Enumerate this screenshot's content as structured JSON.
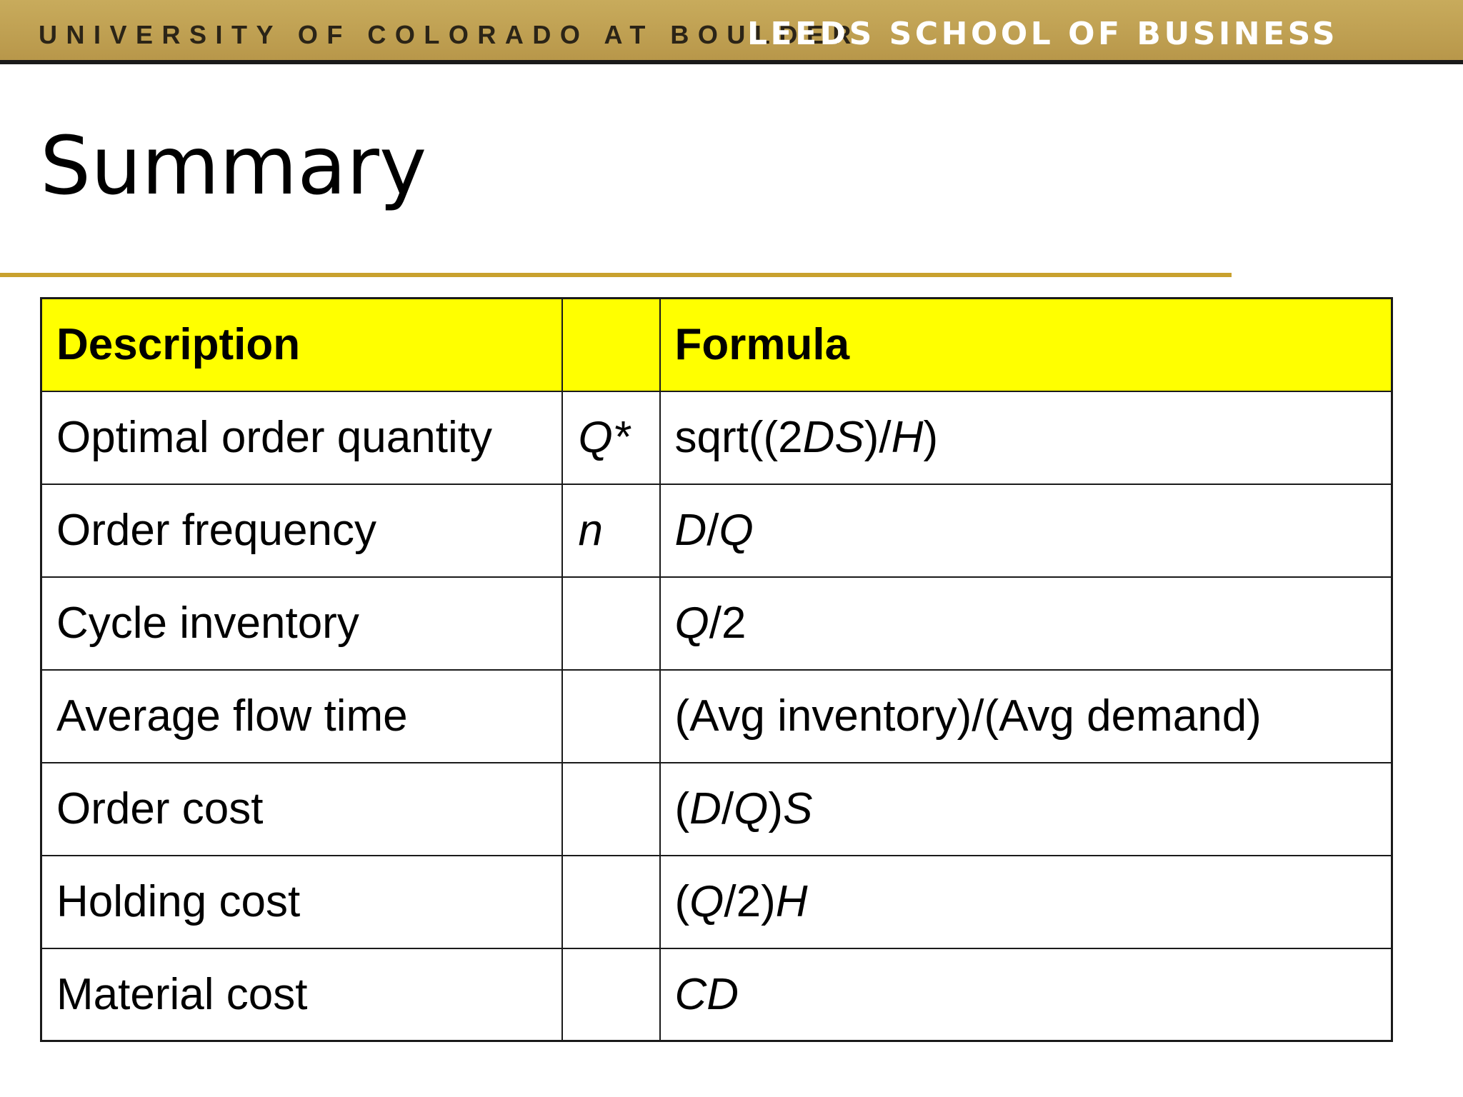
{
  "header": {
    "university": "UNIVERSITY OF COLORADO AT BOULDER",
    "school": "LEEDS SCHOOL OF BUSINESS",
    "colors": {
      "banner": "#c8ab5c",
      "banner_rule": "#1a1a1a",
      "accent_rule": "#c9a12e",
      "table_header": "#ffff00"
    }
  },
  "slide": {
    "title": "Summary"
  },
  "table": {
    "headers": {
      "description": "Description",
      "symbol": "",
      "formula": "Formula"
    },
    "rows": [
      {
        "description": "Optimal order quantity",
        "symbol": "Q*",
        "formula": [
          {
            "t": "sqrt((2",
            "i": false
          },
          {
            "t": "DS",
            "i": true
          },
          {
            "t": ")/",
            "i": false
          },
          {
            "t": "H",
            "i": true
          },
          {
            "t": ")",
            "i": false
          }
        ]
      },
      {
        "description": "Order frequency",
        "symbol": "n",
        "formula": [
          {
            "t": "D",
            "i": true
          },
          {
            "t": "/",
            "i": false
          },
          {
            "t": "Q",
            "i": true
          }
        ]
      },
      {
        "description": "Cycle inventory",
        "symbol": "",
        "formula": [
          {
            "t": "Q",
            "i": true
          },
          {
            "t": "/2",
            "i": false
          }
        ]
      },
      {
        "description": "Average flow time",
        "symbol": "",
        "formula": [
          {
            "t": "(Avg inventory)/(Avg demand)",
            "i": false
          }
        ]
      },
      {
        "description": "Order cost",
        "symbol": "",
        "formula": [
          {
            "t": "(",
            "i": false
          },
          {
            "t": "D",
            "i": true
          },
          {
            "t": "/",
            "i": false
          },
          {
            "t": "Q",
            "i": true
          },
          {
            "t": ")",
            "i": false
          },
          {
            "t": "S",
            "i": true
          }
        ]
      },
      {
        "description": "Holding cost",
        "symbol": "",
        "formula": [
          {
            "t": "(",
            "i": false
          },
          {
            "t": "Q",
            "i": true
          },
          {
            "t": "/2)",
            "i": false
          },
          {
            "t": "H",
            "i": true
          }
        ]
      },
      {
        "description": "Material cost",
        "symbol": "",
        "formula": [
          {
            "t": "CD",
            "i": true
          }
        ]
      }
    ]
  }
}
